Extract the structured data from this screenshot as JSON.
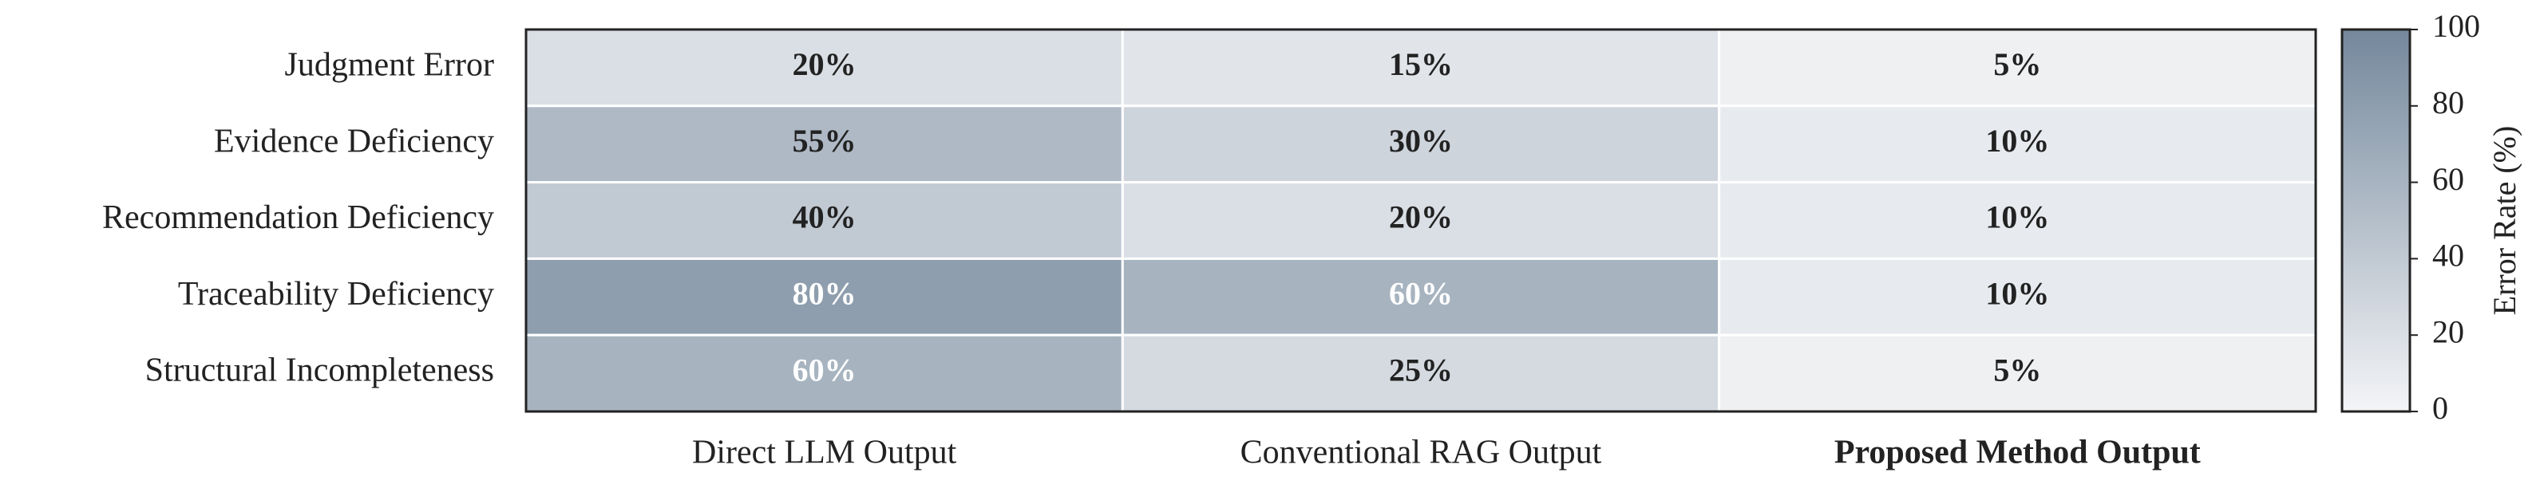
{
  "chart_data": {
    "type": "heatmap",
    "x_categories": [
      "Direct LLM Output",
      "Conventional RAG Output",
      "Proposed Method Output"
    ],
    "x_label_bold": [
      false,
      false,
      true
    ],
    "y_categories": [
      "Judgment Error",
      "Evidence Deficiency",
      "Recommendation Deficiency",
      "Traceability Deficiency",
      "Structural Incompleteness"
    ],
    "values": [
      [
        20,
        15,
        5
      ],
      [
        55,
        30,
        10
      ],
      [
        40,
        20,
        10
      ],
      [
        80,
        60,
        10
      ],
      [
        60,
        25,
        5
      ]
    ],
    "value_labels": [
      [
        "20%",
        "15%",
        "5%"
      ],
      [
        "55%",
        "30%",
        "10%"
      ],
      [
        "40%",
        "20%",
        "10%"
      ],
      [
        "80%",
        "60%",
        "10%"
      ],
      [
        "60%",
        "25%",
        "5%"
      ]
    ],
    "colormap": [
      "#f4f5f7",
      "#74889c"
    ],
    "colorbar": {
      "label": "Error Rate (%)",
      "lim": [
        0,
        100
      ],
      "ticks": [
        0,
        20,
        40,
        60,
        80,
        100
      ]
    }
  }
}
